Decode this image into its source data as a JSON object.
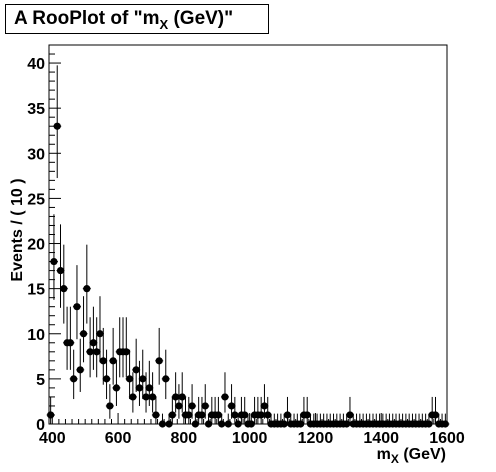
{
  "chart_data": {
    "type": "scatter",
    "title": "A RooPlot of \"m",
    "title_sub": "X",
    "title_tail": " (GeV)\"",
    "xlabel": "m",
    "xlabel_sub": "X",
    "xlabel_tail": " (GeV)",
    "ylabel": "Events / ( 10 )",
    "xlim": [
      390,
      1600
    ],
    "ylim": [
      0,
      42
    ],
    "xticks": [
      400,
      600,
      800,
      1000,
      1200,
      1400,
      1600
    ],
    "yticks": [
      0,
      5,
      10,
      15,
      20,
      25,
      30,
      35,
      40
    ],
    "grid": false,
    "marker_color": "#000000",
    "bins": {
      "x": [
        395,
        405,
        415,
        425,
        435,
        445,
        455,
        465,
        475,
        485,
        495,
        505,
        515,
        525,
        535,
        545,
        555,
        565,
        575,
        585,
        595,
        605,
        615,
        625,
        635,
        645,
        655,
        665,
        675,
        685,
        695,
        705,
        715,
        725,
        735,
        745,
        755,
        765,
        775,
        785,
        795,
        805,
        815,
        825,
        835,
        845,
        855,
        865,
        875,
        885,
        895,
        905,
        915,
        925,
        935,
        945,
        955,
        965,
        975,
        985,
        995,
        1005,
        1015,
        1025,
        1035,
        1045,
        1055,
        1065,
        1075,
        1085,
        1095,
        1105,
        1115,
        1125,
        1135,
        1145,
        1155,
        1165,
        1175,
        1185,
        1195,
        1205,
        1215,
        1225,
        1235,
        1245,
        1255,
        1265,
        1275,
        1285,
        1295,
        1305,
        1315,
        1325,
        1335,
        1345,
        1355,
        1365,
        1375,
        1385,
        1395,
        1405,
        1415,
        1425,
        1435,
        1445,
        1455,
        1465,
        1475,
        1485,
        1495,
        1505,
        1515,
        1525,
        1535,
        1545,
        1555,
        1565,
        1575,
        1585,
        1595
      ],
      "y": [
        1,
        18,
        33,
        17,
        15,
        9,
        9,
        5,
        13,
        6,
        10,
        15,
        8,
        9,
        8,
        10,
        7,
        5,
        2,
        7,
        4,
        8,
        8,
        8,
        5,
        3,
        6,
        4,
        5,
        3,
        4,
        3,
        1,
        7,
        0,
        5,
        0,
        1,
        3,
        2,
        3,
        1,
        1,
        2,
        0,
        1,
        1,
        2,
        0,
        1,
        1,
        1,
        0,
        3,
        0,
        2,
        1,
        0,
        1,
        1,
        0,
        0,
        1,
        1,
        1,
        2,
        1,
        0,
        0,
        0,
        0,
        0,
        1,
        0,
        0,
        0,
        0,
        1,
        1,
        0,
        0,
        0,
        0,
        0,
        0,
        0,
        0,
        0,
        0,
        0,
        0,
        1,
        0,
        0,
        0,
        0,
        0,
        0,
        0,
        0,
        0,
        0,
        0,
        0,
        0,
        0,
        0,
        0,
        0,
        0,
        0,
        0,
        0,
        0,
        0,
        0,
        1,
        1,
        0,
        0,
        0
      ]
    }
  }
}
